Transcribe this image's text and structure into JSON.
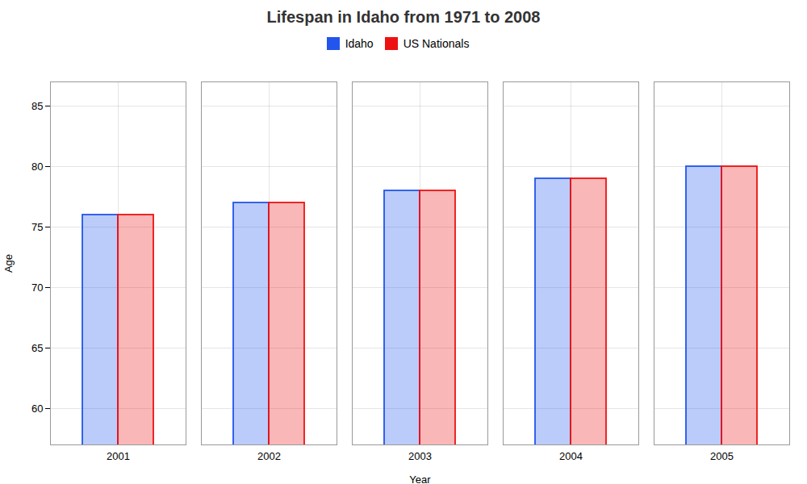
{
  "chart_data": {
    "type": "bar",
    "title": "Lifespan in Idaho from 1971 to 2008",
    "xlabel": "Year",
    "ylabel": "Age",
    "categories": [
      "2001",
      "2002",
      "2003",
      "2004",
      "2005"
    ],
    "series": [
      {
        "name": "Idaho",
        "color": "#2255ee",
        "values": [
          76,
          77,
          78,
          79,
          80
        ]
      },
      {
        "name": "US Nationals",
        "color": "#ee1111",
        "values": [
          76,
          77,
          78,
          79,
          80
        ]
      }
    ],
    "ylim": [
      57,
      87
    ],
    "yticks": [
      60,
      65,
      70,
      75,
      80,
      85
    ],
    "grid": true,
    "legend": "top"
  }
}
